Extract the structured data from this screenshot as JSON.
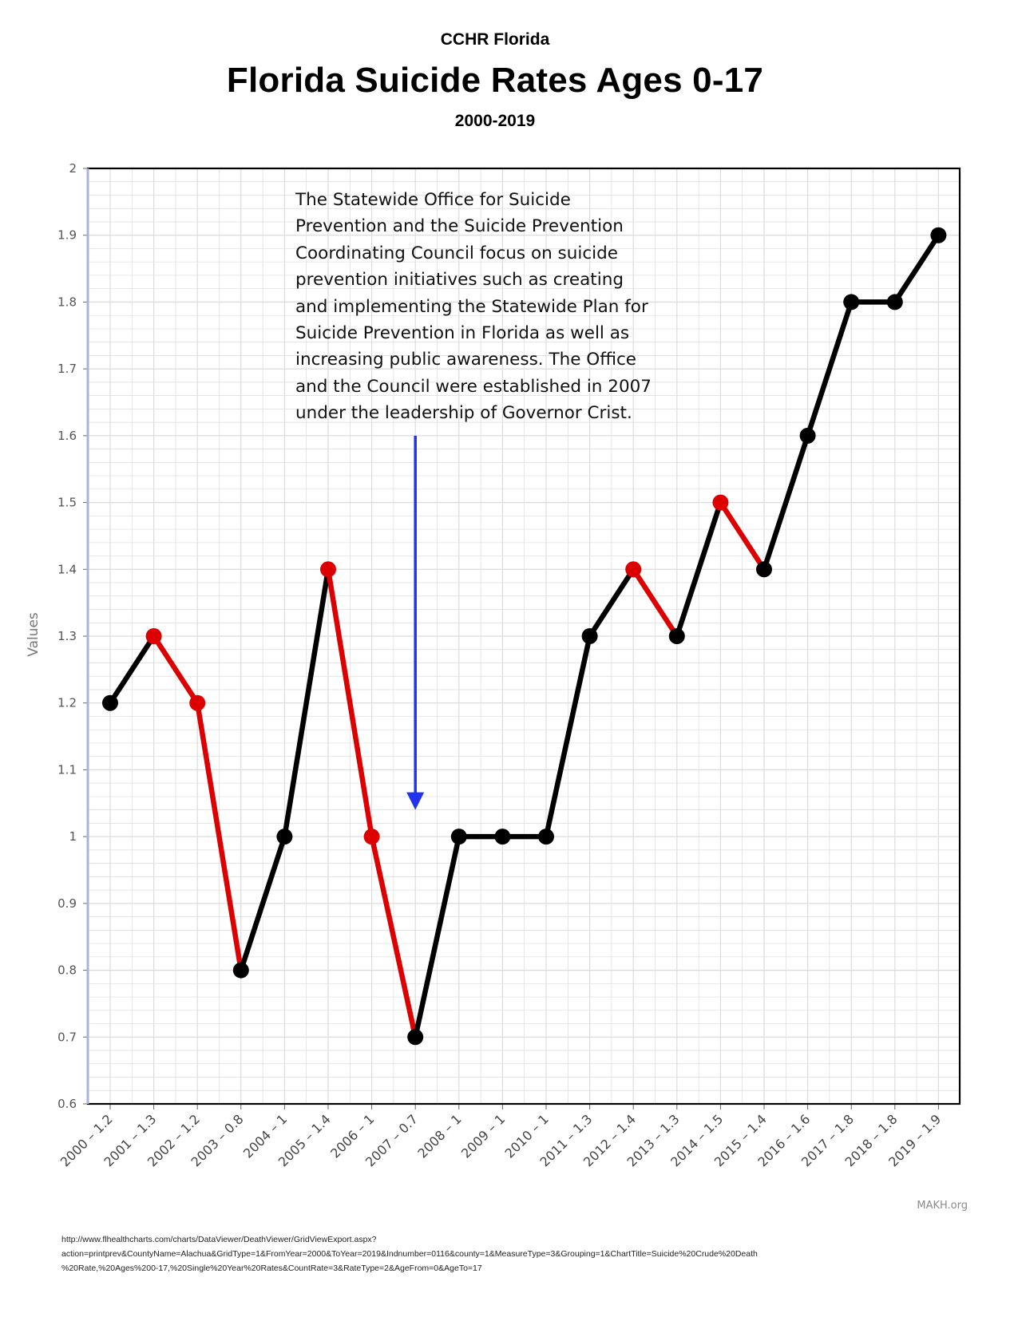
{
  "header": {
    "org": "CCHR Florida",
    "title": "Florida Suicide Rates Ages 0-17",
    "years": "2000-2019"
  },
  "annotation": {
    "text": "The Statewide Office for Suicide Prevention and the Suicide Prevention Coordinating Council focus on suicide prevention initiatives such as creating and implementing the Statewide Plan for Suicide Prevention in Florida as well as increasing public awareness. The Office and the Council were established in 2007 under the leadership of Governor Crist.",
    "arrow_target": "2007 – 0.7",
    "arrow_from_value": 1.6,
    "arrow_to_value": 1.04,
    "arrow_color": "#2233ee"
  },
  "footer": {
    "brand": "MAKH.org",
    "source_url": "http://www.flhealthcharts.com/charts/DataViewer/DeathViewer/GridViewExport.aspx?\naction=printprev&CountyName=Alachua&GridType=1&FromYear=2000&ToYear=2019&Indnumber=0116&county=1&MeasureType=3&Grouping=1&ChartTitle=Suicide%20Crude%20Death\n%20Rate,%20Ages%200-17,%20Single%20Year%20Rates&CountRate=3&RateType=2&AgeFrom=0&AgeTo=17"
  },
  "chart_data": {
    "type": "line",
    "title": "Florida Suicide Rates Ages 0-17",
    "subtitle": "2000-2019",
    "xlabel": "",
    "ylabel": "Values",
    "ylim": [
      0.6,
      2
    ],
    "yticks": [
      "0.6",
      "0.7",
      "0.8",
      "0.9",
      "1",
      "1.1",
      "1.2",
      "1.3",
      "1.4",
      "1.5",
      "1.6",
      "1.7",
      "1.8",
      "1.9",
      "2"
    ],
    "grid": true,
    "categories": [
      "2000 – 1.2",
      "2001 – 1.3",
      "2002 – 1.2",
      "2003 – 0.8",
      "2004 – 1",
      "2005 – 1.4",
      "2006 – 1",
      "2007 – 0.7",
      "2008 – 1",
      "2009 – 1",
      "2010 – 1",
      "2011 – 1.3",
      "2012 – 1.4",
      "2013 – 1.3",
      "2014 – 1.5",
      "2015 – 1.4",
      "2016 – 1.6",
      "2017 – 1.8",
      "2018 – 1.8",
      "2019 – 1.9"
    ],
    "values": [
      1.2,
      1.3,
      1.2,
      0.8,
      1.0,
      1.4,
      1.0,
      0.7,
      1.0,
      1.0,
      1.0,
      1.3,
      1.4,
      1.3,
      1.5,
      1.4,
      1.6,
      1.8,
      1.8,
      1.9
    ],
    "point_colors": [
      "black",
      "red",
      "red",
      "black",
      "black",
      "red",
      "red",
      "black",
      "black",
      "black",
      "black",
      "black",
      "red",
      "black",
      "red",
      "black",
      "black",
      "black",
      "black",
      "black"
    ],
    "segment_colors": [
      "black",
      "red",
      "red",
      "black",
      "black",
      "red",
      "red",
      "black",
      "black",
      "black",
      "black",
      "black",
      "red",
      "black",
      "red",
      "black",
      "black",
      "black",
      "black"
    ],
    "colors": {
      "rise": "#000000",
      "decline": "#dd0000",
      "grid": "#dcdcdc",
      "axis": "#000000",
      "y_axis_line": "#aab4d8"
    }
  }
}
